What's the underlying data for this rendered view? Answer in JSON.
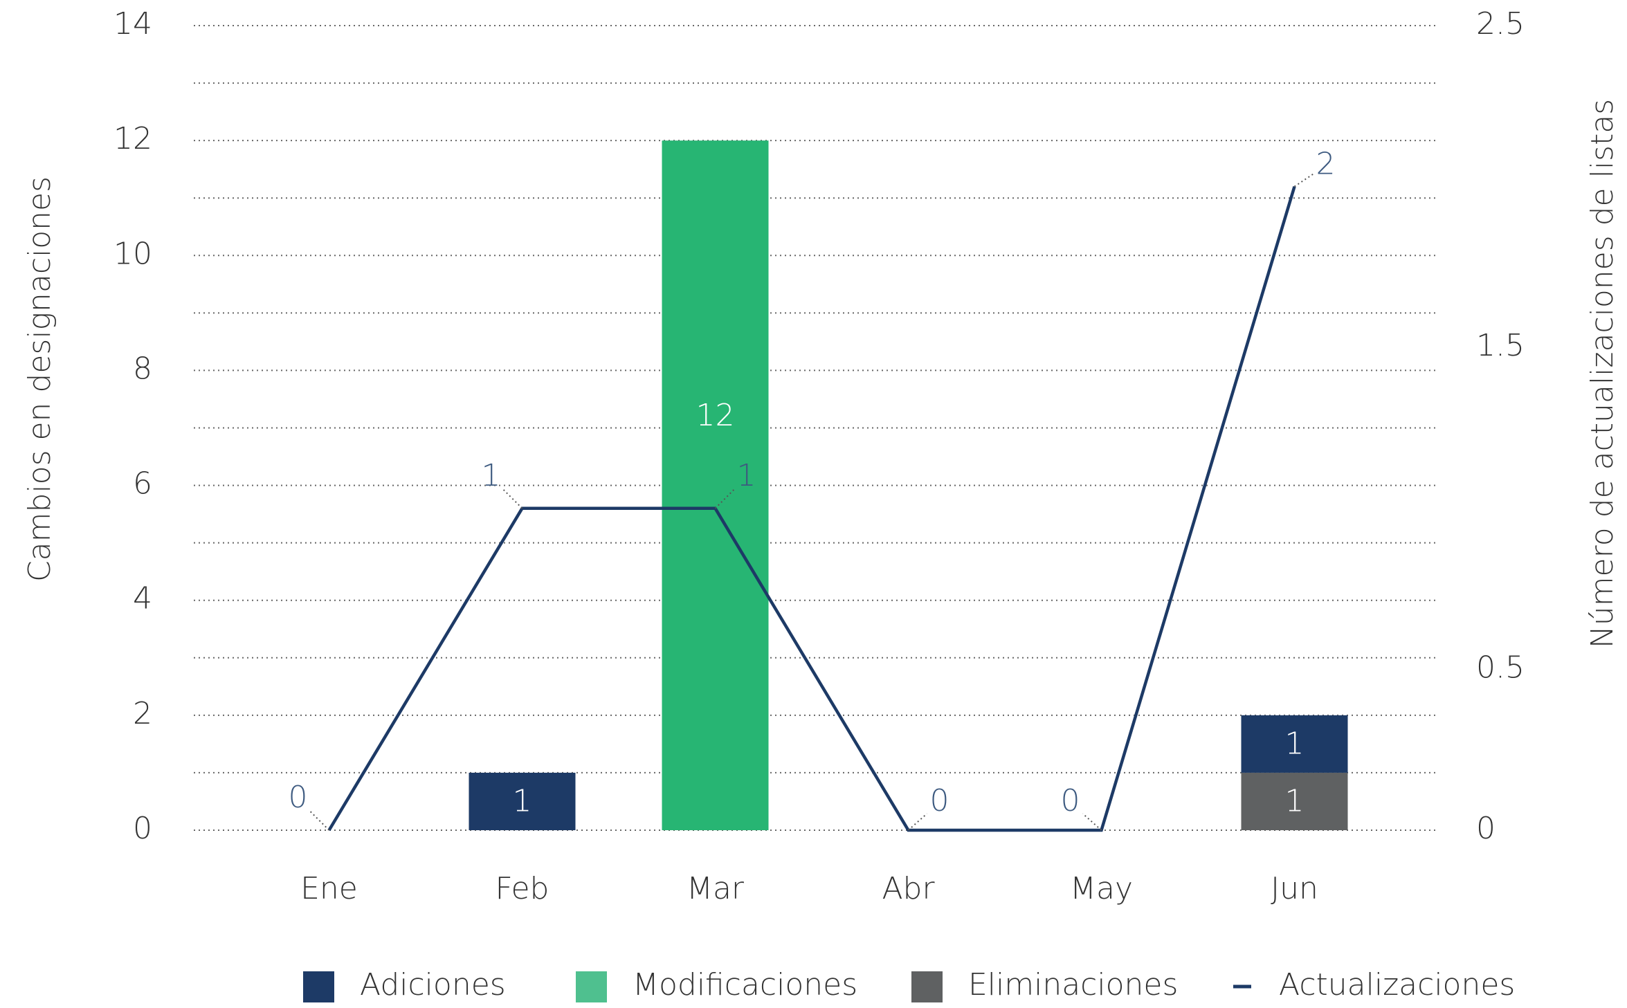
{
  "chart_data": {
    "type": "bar-line",
    "categories": [
      "Ene",
      "Feb",
      "Mar",
      "Abr",
      "May",
      "Jun"
    ],
    "series": [
      {
        "name": "Adiciones",
        "color": "#1d3a66",
        "values": [
          0,
          1,
          0,
          0,
          0,
          1
        ]
      },
      {
        "name": "Modificaciones",
        "color": "#27b573",
        "values": [
          0,
          0,
          12,
          0,
          0,
          0
        ]
      },
      {
        "name": "Eliminaciones",
        "color": "#5f6162",
        "values": [
          0,
          0,
          0,
          0,
          0,
          1
        ]
      },
      {
        "name": "Actualizaciones",
        "color": "#1d3a66",
        "type": "line",
        "axis": "y2",
        "values": [
          0,
          1,
          1,
          0,
          0,
          2
        ]
      }
    ],
    "ylabel": "Cambios en designaciones",
    "y2label": "Número de actualizaciones de listas",
    "ylim": [
      0,
      14
    ],
    "yticks": [
      0,
      2,
      4,
      6,
      8,
      10,
      12,
      14
    ],
    "yminorticks": [
      1,
      3,
      5,
      7,
      9,
      11,
      13
    ],
    "y2lim": [
      0,
      2.5
    ],
    "y2ticks": [
      0,
      0.5,
      1.5,
      2.5
    ],
    "grid": true,
    "stacked": true,
    "legend": "bottom"
  }
}
